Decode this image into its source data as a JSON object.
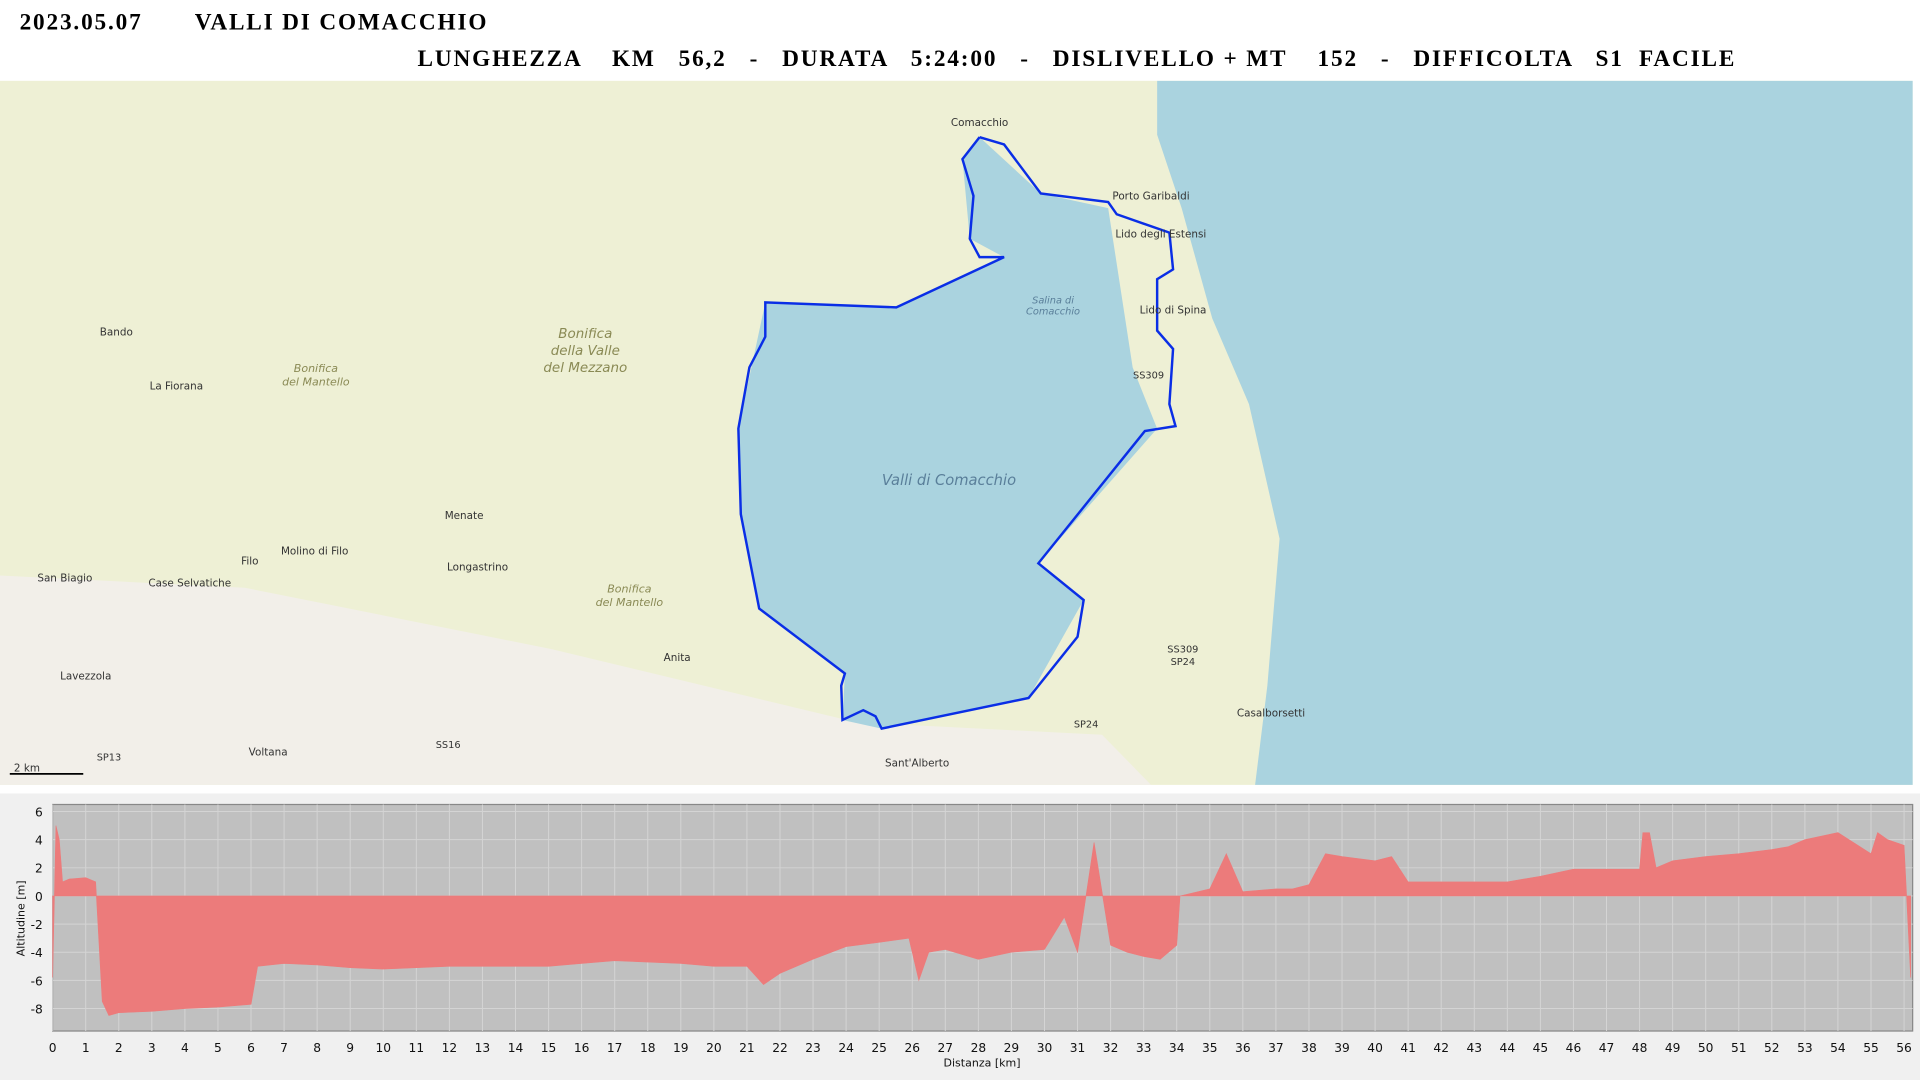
{
  "header": {
    "date": "2023.05.07",
    "title": "VALLI DI COMACCHIO",
    "summary": "LUNGHEZZA    KM   56,2   -   DURATA   5:24:00   -   DISLIVELLO + MT    152   -   DIFFICOLTA   S1  FACILE"
  },
  "map": {
    "places": [
      "Comacchio",
      "Porto Garibaldi",
      "Lido degli Estensi",
      "Lido di Spina",
      "Bando",
      "La Fiorana",
      "Menate",
      "Longastrino",
      "Filo",
      "Molino di Filo",
      "San Biagio",
      "Case Selvatiche",
      "Lavezzola",
      "Anita",
      "Voltana",
      "Sant'Alberto",
      "Casalborsetti"
    ],
    "areas": [
      "Valli di Comacchio",
      "Bonifica",
      "della Valle",
      "del Mezzano",
      "Bonifica",
      "del Mantello",
      "Bonifica",
      "del Mantello",
      "Salina di",
      "Comacchio"
    ],
    "roads": [
      "SS16",
      "SP13",
      "SP24",
      "SS309",
      "SS309",
      "SP24"
    ],
    "scale": "2 km"
  },
  "chart_data": {
    "type": "area",
    "x_label": "Distanza [km]",
    "y_label": "Altitudine [m]",
    "x": [
      0,
      0.1,
      0.2,
      0.3,
      0.5,
      1.0,
      1.3,
      1.5,
      1.7,
      2,
      3,
      4,
      5,
      6,
      6.2,
      7,
      8,
      9,
      10,
      11,
      12,
      13,
      14,
      15,
      16,
      17,
      18,
      19,
      20,
      21,
      21.5,
      22,
      23,
      24,
      25,
      25.9,
      26.2,
      26.5,
      27,
      28,
      29,
      30,
      30.6,
      31,
      31.5,
      32,
      32.5,
      33,
      33.5,
      34,
      34.1,
      35,
      35.5,
      36,
      37,
      37.5,
      38,
      38.5,
      39,
      40,
      40.5,
      41,
      42,
      43,
      44,
      45,
      46,
      47,
      48,
      48.1,
      48.3,
      48.5,
      49,
      50,
      51,
      52,
      52.5,
      53,
      54,
      55,
      55.2,
      55.5,
      56,
      56.2
    ],
    "series": [
      {
        "color": "#ec7b7b",
        "values": [
          -5.8,
          5,
          4,
          1,
          1.2,
          1.3,
          1,
          -7.5,
          -8.5,
          -8.3,
          -8.2,
          -8,
          -7.9,
          -7.7,
          -5,
          -4.8,
          -4.9,
          -5.1,
          -5.2,
          -5.1,
          -5,
          -5,
          -5,
          -5,
          -4.8,
          -4.6,
          -4.7,
          -4.8,
          -5,
          -5,
          -6.3,
          -5.5,
          -4.5,
          -3.6,
          -3.3,
          -3,
          -6,
          -4,
          -3.8,
          -4.5,
          -4,
          -3.8,
          -1.5,
          -4,
          3.8,
          -3.5,
          -4,
          -4.3,
          -4.5,
          -3.5,
          0,
          0.5,
          3,
          0.3,
          0.5,
          0.5,
          0.8,
          3,
          2.8,
          2.5,
          2.8,
          1,
          1,
          1,
          1,
          1.4,
          1.9,
          1.9,
          1.9,
          4.5,
          4.5,
          2,
          2.5,
          2.8,
          3,
          3.3,
          3.5,
          4,
          4.5,
          3,
          4.5,
          4,
          3.6,
          -5.8
        ]
      }
    ],
    "xlim": [
      0,
      56.26
    ],
    "ylim": [
      -9.6,
      6.5
    ],
    "xticks": [
      0,
      1,
      2,
      3,
      4,
      5,
      6,
      7,
      8,
      9,
      10,
      11,
      12,
      13,
      14,
      15,
      16,
      17,
      18,
      19,
      20,
      21,
      22,
      23,
      24,
      25,
      26,
      27,
      28,
      29,
      30,
      31,
      32,
      33,
      34,
      35,
      36,
      37,
      38,
      39,
      40,
      41,
      42,
      43,
      44,
      45,
      46,
      47,
      48,
      49,
      50,
      51,
      52,
      53,
      54,
      55,
      56
    ],
    "yticks": [
      -8,
      -6,
      -4,
      -2,
      0,
      2,
      4,
      6
    ],
    "grid": true
  }
}
